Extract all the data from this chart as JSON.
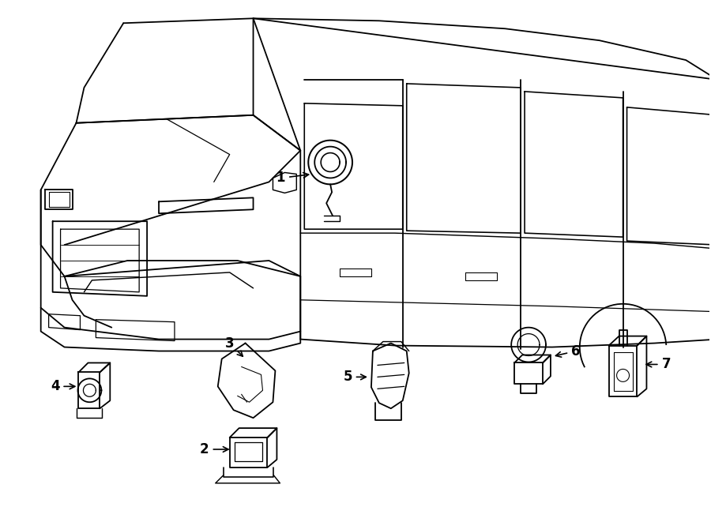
{
  "background_color": "#ffffff",
  "line_color": "#000000",
  "label_fontsize": 12,
  "label_fontweight": "bold",
  "fig_width": 9.0,
  "fig_height": 6.61,
  "dpi": 100
}
